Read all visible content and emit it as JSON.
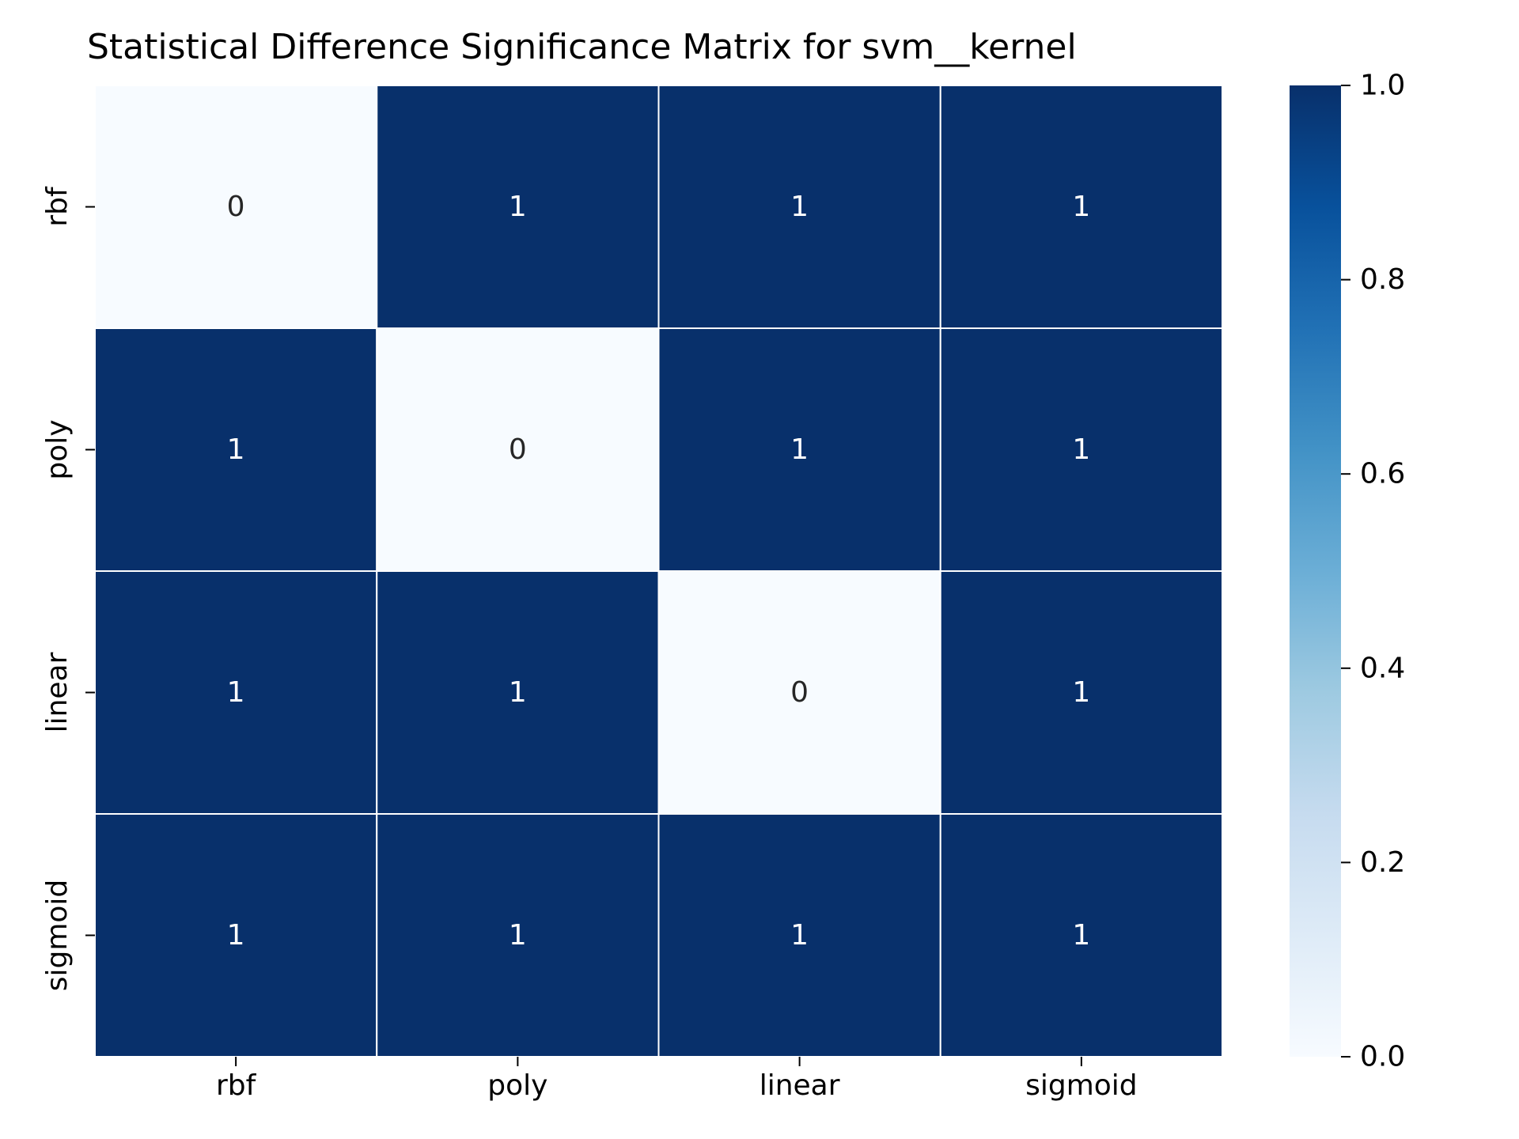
{
  "chart_data": {
    "type": "heatmap",
    "title": "Statistical Difference Significance Matrix for svm__kernel",
    "xlabel": "",
    "ylabel": "",
    "rows": [
      "rbf",
      "poly",
      "linear",
      "sigmoid"
    ],
    "columns": [
      "rbf",
      "poly",
      "linear",
      "sigmoid"
    ],
    "values": [
      [
        0,
        1,
        1,
        1
      ],
      [
        1,
        0,
        1,
        1
      ],
      [
        1,
        1,
        0,
        1
      ],
      [
        1,
        1,
        1,
        1
      ]
    ],
    "annotations": [
      [
        "0",
        "1",
        "1",
        "1"
      ],
      [
        "1",
        "0",
        "1",
        "1"
      ],
      [
        "1",
        "1",
        "0",
        "1"
      ],
      [
        "1",
        "1",
        "1",
        "1"
      ]
    ],
    "colorbar": {
      "range": [
        0.0,
        1.0
      ],
      "ticks": [
        "0.0",
        "0.2",
        "0.4",
        "0.6",
        "0.8",
        "1.0"
      ],
      "colormap": "Blues",
      "low_color": "#f7fbff",
      "high_color": "#08306b"
    },
    "cell_border_color": "#ffffff"
  }
}
